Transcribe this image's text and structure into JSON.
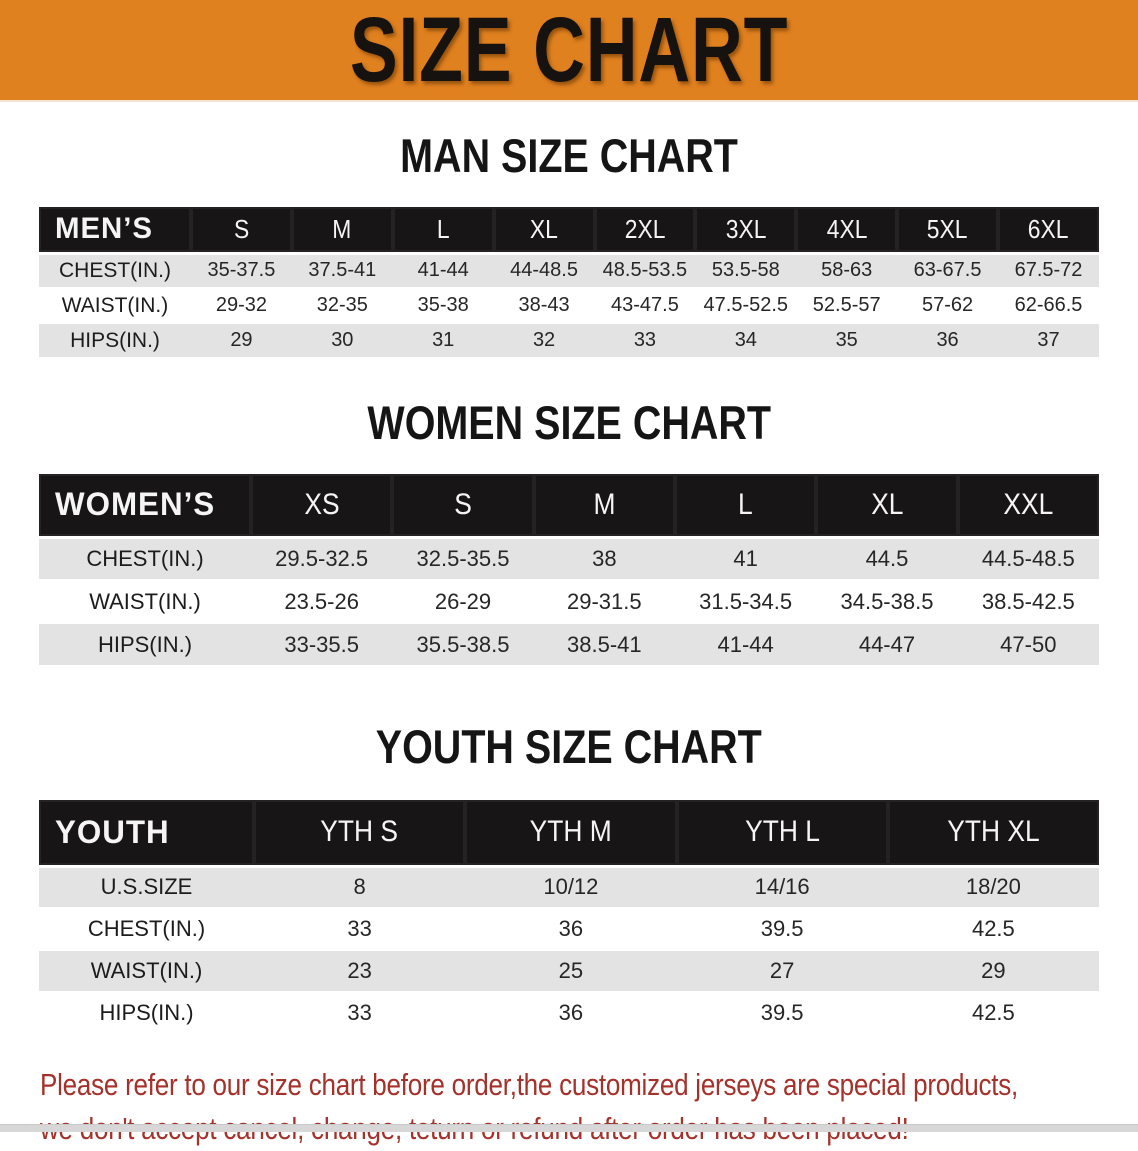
{
  "banner": {
    "title": "SIZE CHART",
    "bg_color": "#e0811f"
  },
  "sections": [
    {
      "id": "mens",
      "title": "MAN SIZE CHART",
      "header_label": "MEN’S",
      "columns": [
        "S",
        "M",
        "L",
        "XL",
        "2XL",
        "3XL",
        "4XL",
        "5XL",
        "6XL"
      ],
      "rows": [
        {
          "label": "CHEST(IN.)",
          "values": [
            "35-37.5",
            "37.5-41",
            "41-44",
            "44-48.5",
            "48.5-53.5",
            "53.5-58",
            "58-63",
            "63-67.5",
            "67.5-72"
          ]
        },
        {
          "label": "WAIST(IN.)",
          "values": [
            "29-32",
            "32-35",
            "35-38",
            "38-43",
            "43-47.5",
            "47.5-52.5",
            "52.5-57",
            "57-62",
            "62-66.5"
          ]
        },
        {
          "label": "HIPS(IN.)",
          "values": [
            "29",
            "30",
            "31",
            "32",
            "33",
            "34",
            "35",
            "36",
            "37"
          ]
        }
      ]
    },
    {
      "id": "womens",
      "title": "WOMEN SIZE CHART",
      "header_label": "WOMEN’S",
      "columns": [
        "XS",
        "S",
        "M",
        "L",
        "XL",
        "XXL"
      ],
      "rows": [
        {
          "label": "CHEST(IN.)",
          "values": [
            "29.5-32.5",
            "32.5-35.5",
            "38",
            "41",
            "44.5",
            "44.5-48.5"
          ]
        },
        {
          "label": "WAIST(IN.)",
          "values": [
            "23.5-26",
            "26-29",
            "29-31.5",
            "31.5-34.5",
            "34.5-38.5",
            "38.5-42.5"
          ]
        },
        {
          "label": "HIPS(IN.)",
          "values": [
            "33-35.5",
            "35.5-38.5",
            "38.5-41",
            "41-44",
            "44-47",
            "47-50"
          ]
        }
      ]
    },
    {
      "id": "youth",
      "title": "YOUTH SIZE CHART",
      "header_label": "YOUTH",
      "columns": [
        "YTH S",
        "YTH M",
        "YTH L",
        "YTH XL"
      ],
      "rows": [
        {
          "label": "U.S.SIZE",
          "values": [
            "8",
            "10/12",
            "14/16",
            "18/20"
          ]
        },
        {
          "label": "CHEST(IN.)",
          "values": [
            "33",
            "36",
            "39.5",
            "42.5"
          ]
        },
        {
          "label": "WAIST(IN.)",
          "values": [
            "23",
            "25",
            "27",
            "29"
          ]
        },
        {
          "label": "HIPS(IN.)",
          "values": [
            "33",
            "36",
            "39.5",
            "42.5"
          ]
        }
      ]
    }
  ],
  "disclaimer": {
    "color": "#a5312b",
    "lines": [
      "Please refer to our size chart before order,the customized jerseys are special products,",
      "we don't accept cancel, change, teturn or refund after order has been placed!"
    ]
  }
}
